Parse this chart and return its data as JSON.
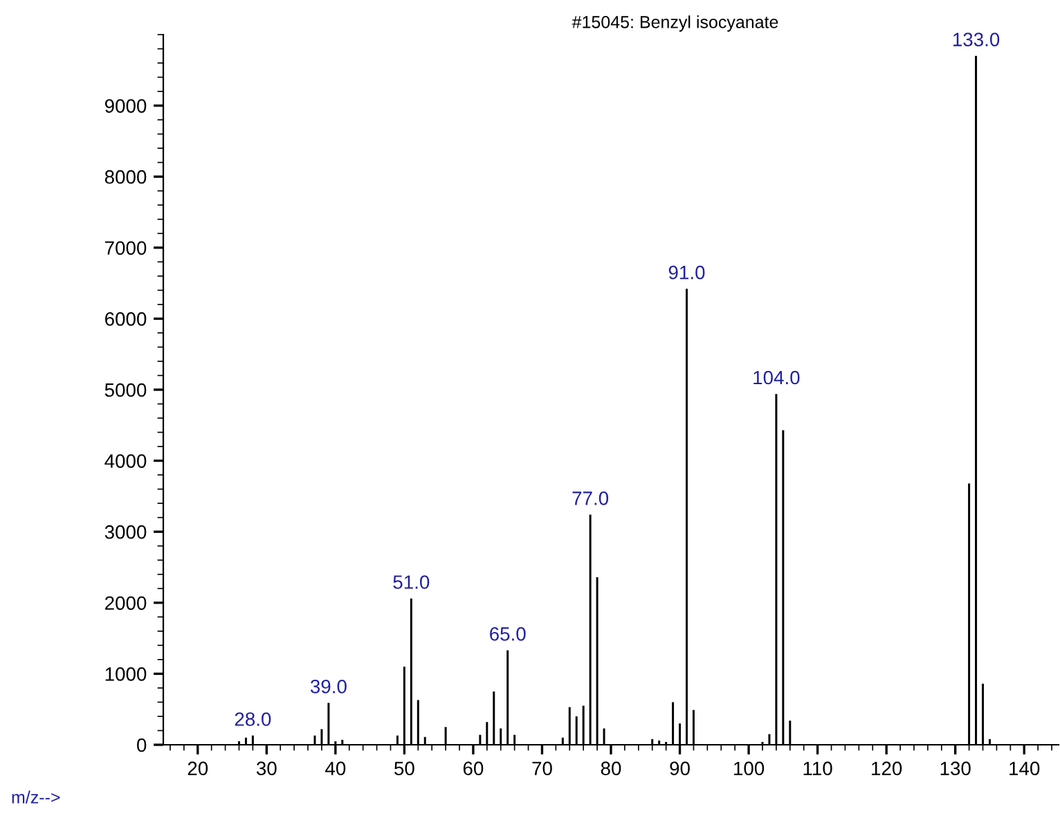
{
  "chart_data": {
    "type": "bar",
    "title": "#15045: Benzyl isocyanate",
    "xlabel": "m/z-->",
    "x": [
      26,
      27,
      28,
      37,
      38,
      39,
      40,
      41,
      49,
      50,
      51,
      52,
      53,
      56,
      61,
      62,
      63,
      64,
      65,
      66,
      73,
      74,
      75,
      76,
      77,
      78,
      79,
      86,
      87,
      88,
      89,
      90,
      91,
      92,
      102,
      103,
      104,
      105,
      106,
      132,
      133,
      134,
      135
    ],
    "values": [
      50,
      100,
      130,
      130,
      220,
      590,
      50,
      70,
      130,
      1100,
      2060,
      630,
      110,
      250,
      140,
      320,
      750,
      230,
      1330,
      140,
      100,
      530,
      400,
      550,
      3240,
      2360,
      230,
      80,
      60,
      40,
      600,
      300,
      6420,
      490,
      40,
      150,
      4940,
      4430,
      340,
      3680,
      9700,
      860,
      80
    ],
    "color": "#000000",
    "annotations": [
      {
        "text": "28.0",
        "x": 28,
        "y": 130
      },
      {
        "text": "39.0",
        "x": 39,
        "y": 590
      },
      {
        "text": "51.0",
        "x": 51,
        "y": 2060
      },
      {
        "text": "65.0",
        "x": 65,
        "y": 1330
      },
      {
        "text": "77.0",
        "x": 77,
        "y": 3240
      },
      {
        "text": "91.0",
        "x": 91,
        "y": 6420
      },
      {
        "text": "104.0",
        "x": 104,
        "y": 4940
      },
      {
        "text": "133.0",
        "x": 133,
        "y": 9700
      }
    ],
    "xlim": [
      15,
      145
    ],
    "xticks": [
      20,
      30,
      40,
      50,
      60,
      70,
      80,
      90,
      100,
      110,
      120,
      130,
      140
    ],
    "ylim": [
      0,
      10000
    ],
    "yticks": [
      0,
      1000,
      2000,
      3000,
      4000,
      5000,
      6000,
      7000,
      8000,
      9000
    ],
    "grid": false,
    "legend": false
  }
}
